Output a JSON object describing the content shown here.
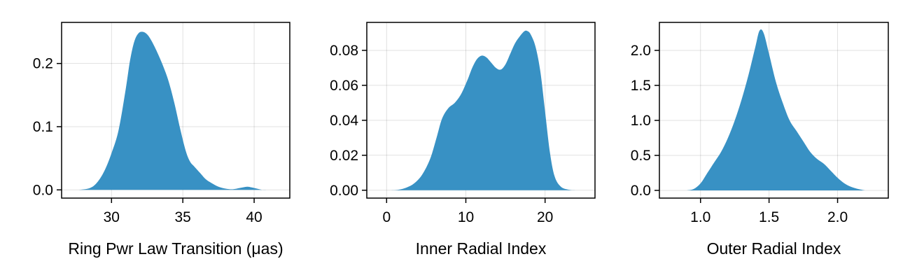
{
  "colors": {
    "fill": "#3891c4",
    "frame": "#000000",
    "grid": "#e6e6e6"
  },
  "chart_data": [
    {
      "type": "area",
      "xlabel": "Ring Pwr Law Transition (μas)",
      "ylabel": "",
      "title": "",
      "xlim": [
        26.5,
        42.5
      ],
      "ylim": [
        -0.013,
        0.265
      ],
      "xticks": [
        30,
        35,
        40
      ],
      "xtick_labels": [
        "30",
        "35",
        "40"
      ],
      "yticks": [
        0.0,
        0.1,
        0.2
      ],
      "ytick_labels": [
        "0.0",
        "0.1",
        "0.2"
      ],
      "grid": true,
      "series": [
        {
          "x": [
            27.7,
            28.5,
            29.0,
            29.5,
            30.0,
            30.5,
            31.0,
            31.3,
            31.6,
            31.9,
            32.2,
            32.5,
            32.8,
            33.2,
            33.6,
            34.0,
            34.4,
            34.8,
            35.2,
            35.5,
            35.8,
            36.2,
            36.6,
            37.0,
            37.5,
            38.0,
            38.5,
            39.0,
            39.5,
            39.8,
            40.2,
            40.6,
            41.0
          ],
          "y": [
            0.0,
            0.003,
            0.012,
            0.03,
            0.058,
            0.095,
            0.16,
            0.205,
            0.235,
            0.248,
            0.25,
            0.246,
            0.236,
            0.218,
            0.197,
            0.172,
            0.138,
            0.098,
            0.062,
            0.045,
            0.037,
            0.027,
            0.017,
            0.011,
            0.005,
            0.002,
            0.001,
            0.003,
            0.005,
            0.004,
            0.002,
            0.0,
            0.0
          ]
        }
      ]
    },
    {
      "type": "area",
      "xlabel": "Inner Radial Index",
      "ylabel": "",
      "title": "",
      "xlim": [
        -2.5,
        26.3
      ],
      "ylim": [
        -0.0045,
        0.096
      ],
      "xticks": [
        0,
        10,
        20
      ],
      "xtick_labels": [
        "0",
        "10",
        "20"
      ],
      "yticks": [
        0.0,
        0.02,
        0.04,
        0.06,
        0.08
      ],
      "ytick_labels": [
        "0.00",
        "0.02",
        "0.04",
        "0.06",
        "0.08"
      ],
      "grid": true,
      "series": [
        {
          "x": [
            0.5,
            1.5,
            2.5,
            3.5,
            4.5,
            5.5,
            6.3,
            7.0,
            7.8,
            8.6,
            9.4,
            10.2,
            10.8,
            11.4,
            12.0,
            12.6,
            13.2,
            13.8,
            14.4,
            15.0,
            15.6,
            16.2,
            16.8,
            17.4,
            17.8,
            18.2,
            18.8,
            19.4,
            20.0,
            20.6,
            21.2,
            22.0,
            23.0,
            24.0
          ],
          "y": [
            0.0,
            0.0003,
            0.0015,
            0.004,
            0.009,
            0.018,
            0.03,
            0.041,
            0.047,
            0.05,
            0.055,
            0.063,
            0.07,
            0.075,
            0.077,
            0.076,
            0.073,
            0.07,
            0.069,
            0.072,
            0.078,
            0.084,
            0.088,
            0.091,
            0.091,
            0.089,
            0.082,
            0.068,
            0.045,
            0.022,
            0.008,
            0.002,
            0.0003,
            0.0
          ]
        }
      ]
    },
    {
      "type": "area",
      "xlabel": "Outer Radial Index",
      "ylabel": "",
      "title": "",
      "xlim": [
        0.7,
        2.37
      ],
      "ylim": [
        -0.11,
        2.4
      ],
      "xticks": [
        1.0,
        1.5,
        2.0
      ],
      "xtick_labels": [
        "1.0",
        "1.5",
        "2.0"
      ],
      "yticks": [
        0.0,
        0.5,
        1.0,
        1.5,
        2.0
      ],
      "ytick_labels": [
        "0.0",
        "0.5",
        "1.0",
        "1.5",
        "2.0"
      ],
      "grid": true,
      "series": [
        {
          "x": [
            0.9,
            0.95,
            1.0,
            1.05,
            1.1,
            1.15,
            1.2,
            1.25,
            1.3,
            1.35,
            1.4,
            1.43,
            1.46,
            1.5,
            1.55,
            1.6,
            1.65,
            1.7,
            1.75,
            1.8,
            1.85,
            1.9,
            1.95,
            2.0,
            2.05,
            2.1,
            2.15,
            2.2
          ],
          "y": [
            0.0,
            0.02,
            0.1,
            0.25,
            0.4,
            0.55,
            0.75,
            1.0,
            1.3,
            1.65,
            2.05,
            2.28,
            2.25,
            1.95,
            1.55,
            1.25,
            1.0,
            0.85,
            0.7,
            0.55,
            0.45,
            0.38,
            0.28,
            0.18,
            0.1,
            0.05,
            0.02,
            0.0
          ]
        }
      ]
    }
  ]
}
